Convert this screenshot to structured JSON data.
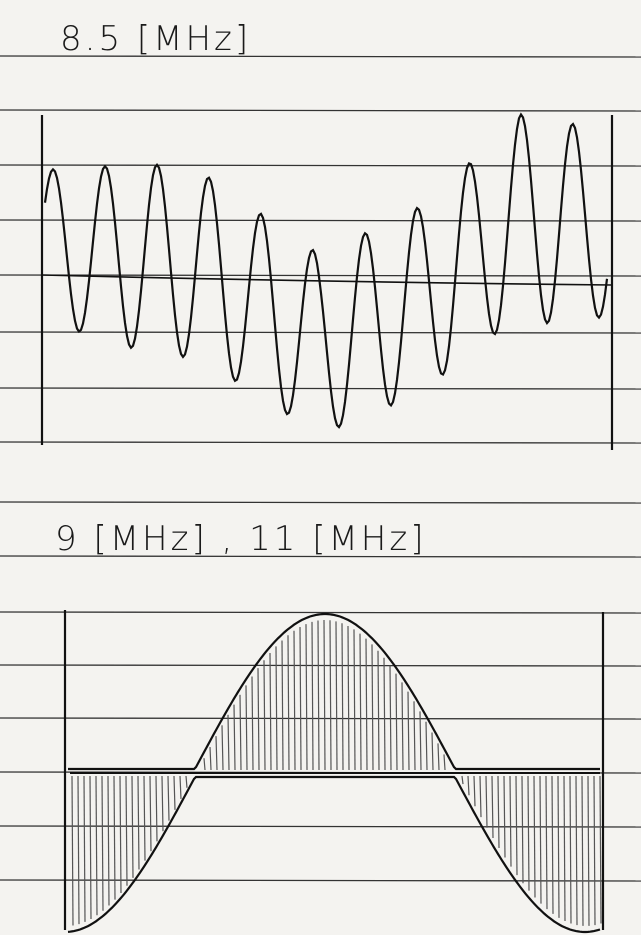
{
  "labels": {
    "top": "8.5 [MHz]",
    "bottom": "9 [MHz] , 11 [MHz]"
  }
}
